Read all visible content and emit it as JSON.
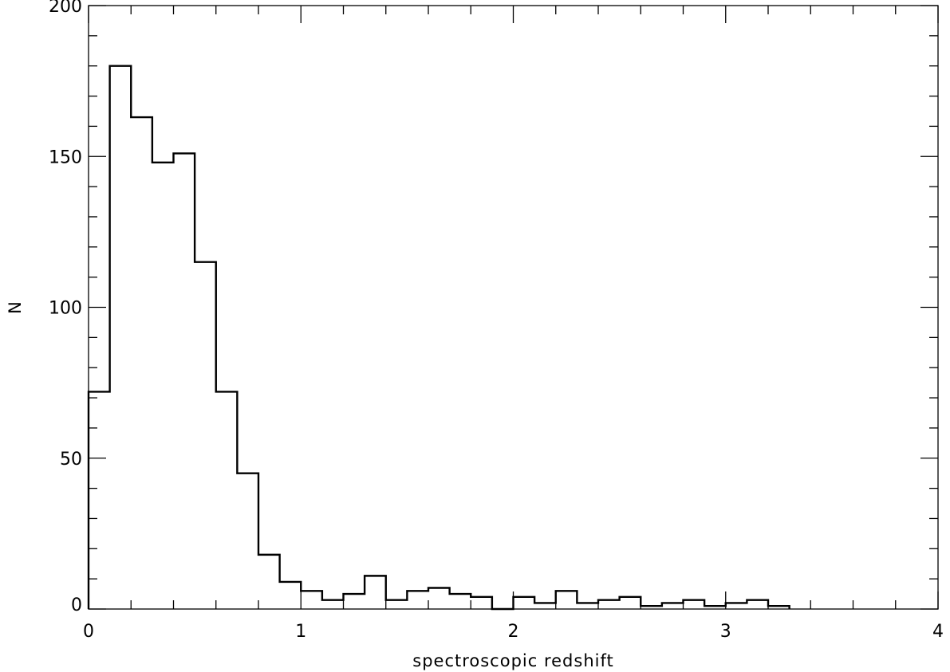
{
  "chart_data": {
    "type": "histogram",
    "title": "",
    "xlabel": "spectroscopic redshift",
    "ylabel": "N",
    "xlim": [
      0,
      4
    ],
    "ylim": [
      0,
      200
    ],
    "xticks": [
      0,
      1,
      2,
      3,
      4
    ],
    "xtick_labels": [
      "0",
      "1",
      "2",
      "3",
      "4"
    ],
    "yticks": [
      0,
      50,
      100,
      150,
      200
    ],
    "ytick_labels": [
      "0",
      "50",
      "100",
      "150",
      "200"
    ],
    "x_minor_step": 0.2,
    "y_minor_step": 10,
    "grid": false,
    "legend": "none",
    "line_color": "#000000",
    "bin_width": 0.1,
    "bin_start": [
      0.0,
      0.1,
      0.2,
      0.3,
      0.4,
      0.5,
      0.6,
      0.7,
      0.8,
      0.9,
      1.0,
      1.1,
      1.2,
      1.3,
      1.4,
      1.5,
      1.6,
      1.7,
      1.8,
      1.9,
      2.0,
      2.1,
      2.2,
      2.3,
      2.4,
      2.5,
      2.6,
      2.7,
      2.8,
      2.9,
      3.0,
      3.1,
      3.2
    ],
    "counts": [
      72,
      180,
      163,
      148,
      151,
      115,
      72,
      45,
      18,
      9,
      6,
      3,
      5,
      11,
      3,
      6,
      7,
      5,
      4,
      0,
      4,
      2,
      6,
      2,
      3,
      4,
      1,
      2,
      3,
      1,
      2,
      3,
      1
    ]
  }
}
